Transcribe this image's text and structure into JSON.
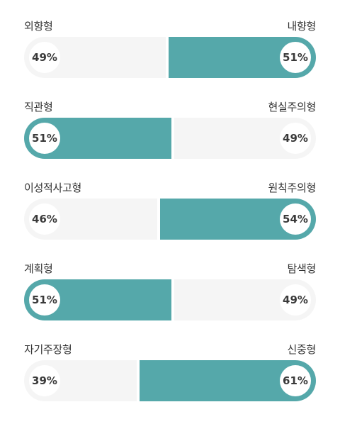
{
  "chart_data": {
    "type": "bar",
    "rows": [
      {
        "left_label": "외향형",
        "right_label": "내향형",
        "left_value": 49,
        "right_value": 51,
        "left_text": "49%",
        "right_text": "51%"
      },
      {
        "left_label": "직관형",
        "right_label": "현실주의형",
        "left_value": 51,
        "right_value": 49,
        "left_text": "51%",
        "right_text": "49%"
      },
      {
        "left_label": "이성적사고형",
        "right_label": "원칙주의형",
        "left_value": 46,
        "right_value": 54,
        "left_text": "46%",
        "right_text": "54%"
      },
      {
        "left_label": "계획형",
        "right_label": "탐색형",
        "left_value": 51,
        "right_value": 49,
        "left_text": "51%",
        "right_text": "49%"
      },
      {
        "left_label": "자기주장형",
        "right_label": "신중형",
        "left_value": 39,
        "right_value": 61,
        "left_text": "39%",
        "right_text": "61%"
      }
    ]
  },
  "colors": {
    "accent": "#55a8aa",
    "track": "#f5f5f5"
  }
}
